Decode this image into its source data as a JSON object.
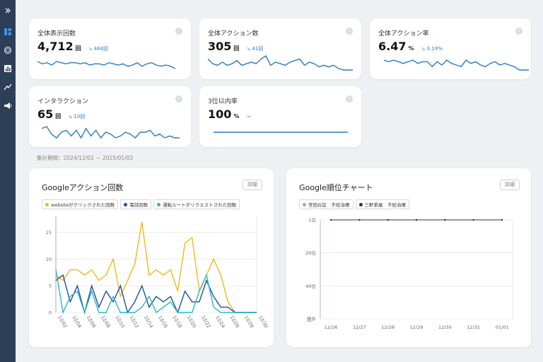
{
  "app": {
    "colors": {
      "sidebar": "#2d3e57",
      "accent": "#2a7bc4"
    }
  },
  "sidebar": {
    "items": [
      {
        "icon": "expand-icon"
      },
      {
        "icon": "dashboard-icon"
      },
      {
        "icon": "ai-icon"
      },
      {
        "icon": "bar-chart-icon"
      },
      {
        "icon": "trend-icon"
      },
      {
        "icon": "megaphone-icon"
      }
    ]
  },
  "kpis": [
    {
      "title": "全体表示回数",
      "value": "4,712",
      "unit": "回",
      "delta": "484回",
      "delta_arrow": "↘"
    },
    {
      "title": "全体アクション数",
      "value": "305",
      "unit": "回",
      "delta": "41回",
      "delta_arrow": "↘"
    },
    {
      "title": "全体アクション率",
      "value": "6.47",
      "unit": "%",
      "delta": "0.19%",
      "delta_arrow": "↘"
    },
    {
      "title": "インタラクション",
      "value": "65",
      "unit": "回",
      "delta": "10回",
      "delta_arrow": "↘"
    },
    {
      "title": "3位以内率",
      "value": "100",
      "unit": "%",
      "delta": "",
      "delta_arrow": "→"
    }
  ],
  "help_symbol": "?",
  "period": "集計期間：2024/12/02 － 2025/01/02",
  "actions_panel": {
    "title": "Googleアクション回数",
    "detail": "詳細"
  },
  "rank_panel": {
    "title": "Google順位チャート",
    "detail": "詳細"
  },
  "chart_data": [
    {
      "type": "line",
      "title": "Googleアクション回数",
      "x": [
        "12/02",
        "12/03",
        "12/04",
        "12/05",
        "12/06",
        "12/07",
        "12/08",
        "12/09",
        "12/10",
        "12/11",
        "12/12",
        "12/13",
        "12/14",
        "12/15",
        "12/16",
        "12/17",
        "12/18",
        "12/19",
        "12/20",
        "12/21",
        "12/22",
        "12/23",
        "12/24",
        "12/25",
        "12/26",
        "12/27",
        "12/28",
        "12/29",
        "12/30"
      ],
      "xticks": [
        "12/02",
        "12/04",
        "12/06",
        "12/08",
        "12/10",
        "12/12",
        "12/14",
        "12/16",
        "12/18",
        "12/20",
        "12/22",
        "12/24",
        "12/26",
        "12/28",
        "12/30"
      ],
      "ylim": [
        0,
        18
      ],
      "yticks": [
        0,
        5,
        10,
        15
      ],
      "grid": true,
      "legend": "top-left",
      "series": [
        {
          "name": "websiteがクリックされた回数",
          "color": "#f2b81d",
          "values": [
            7,
            6,
            8,
            8,
            7,
            8,
            6,
            7,
            10,
            3,
            6,
            9,
            17,
            7,
            8,
            7,
            8,
            4,
            13,
            14,
            4,
            7,
            10,
            7,
            2,
            0,
            0,
            0,
            0
          ]
        },
        {
          "name": "電話回数",
          "color": "#1f4f99",
          "values": [
            6,
            7,
            2,
            5,
            0,
            5,
            1,
            4,
            2,
            5,
            0,
            2,
            5,
            1,
            3,
            2,
            3,
            0,
            4,
            2,
            2,
            6,
            3,
            1,
            1,
            0,
            0,
            0,
            0
          ]
        },
        {
          "name": "運転ルートがリクエストされた回数",
          "color": "#2cb5c8",
          "values": [
            8,
            0,
            3,
            4,
            0,
            4,
            0,
            0,
            3,
            0,
            0,
            0,
            1,
            3,
            0,
            1,
            2,
            0,
            0,
            0,
            4,
            7,
            1,
            0,
            0,
            0,
            0,
            0,
            0
          ]
        }
      ]
    },
    {
      "type": "line",
      "title": "Google順位チャート",
      "x": [
        "12/26",
        "12/27",
        "12/28",
        "12/29",
        "12/30",
        "12/31",
        "01/01"
      ],
      "ylim": [
        "1位",
        "圏外"
      ],
      "yticks": [
        "1位",
        "20位",
        "40位",
        "圏外"
      ],
      "grid": true,
      "legend": "top-left",
      "series": [
        {
          "name": "世田谷区　不妊治療",
          "color": "#7fb1e3",
          "values": [
            1,
            1,
            1,
            1,
            1,
            1,
            1
          ]
        },
        {
          "name": "三軒茶屋　不妊治療",
          "color": "#333333",
          "values": [
            1,
            1,
            1,
            1,
            1,
            1,
            1
          ]
        }
      ]
    }
  ],
  "sparklines": [
    [
      6,
      4,
      5,
      3,
      6,
      5,
      4,
      5,
      5,
      4,
      5,
      3,
      4,
      4,
      3,
      5,
      4,
      3,
      4,
      2,
      3,
      5,
      2,
      4,
      5,
      3,
      2,
      3,
      2,
      0
    ],
    [
      8,
      5,
      4,
      6,
      4,
      5,
      7,
      4,
      5,
      6,
      5,
      8,
      10,
      4,
      6,
      5,
      4,
      6,
      7,
      8,
      4,
      6,
      5,
      3,
      4,
      3,
      4,
      2,
      1,
      1,
      1
    ],
    [
      7,
      6,
      7,
      6,
      5,
      6,
      7,
      5,
      6,
      6,
      3,
      6,
      4,
      7,
      5,
      4,
      3,
      7,
      5,
      6,
      4,
      3,
      5,
      6,
      4,
      5,
      4,
      3,
      1,
      1,
      1
    ],
    [
      5,
      6,
      2,
      0,
      3,
      4,
      1,
      4,
      0,
      5,
      1,
      4,
      0,
      3,
      2,
      0,
      1,
      3,
      2,
      0,
      3,
      3,
      4,
      1,
      2,
      0,
      1,
      0,
      0
    ],
    [
      0,
      0
    ]
  ]
}
